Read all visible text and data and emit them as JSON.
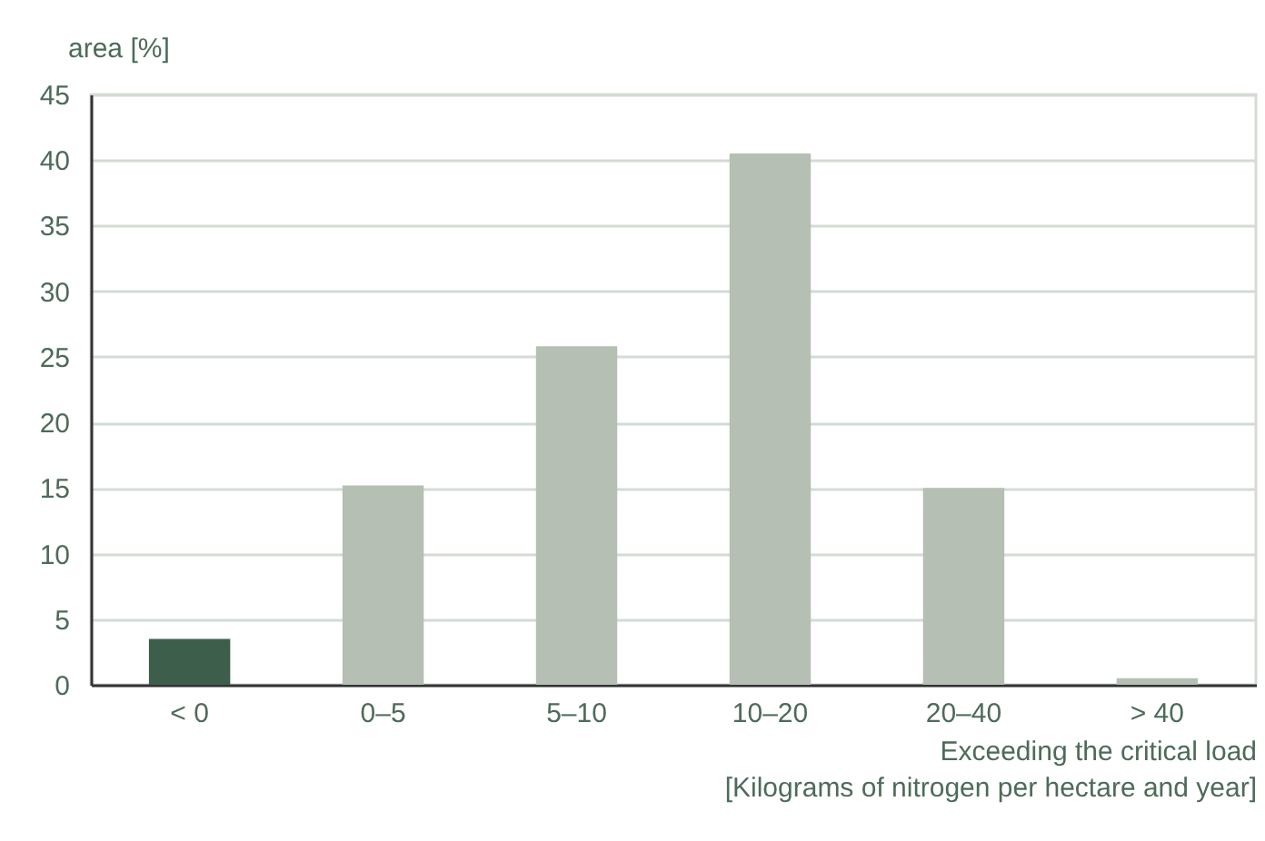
{
  "chart_data": {
    "type": "bar",
    "xlabel": "Exceeding the critical load\n[Kilograms of nitrogen per hectare and year]",
    "ylabel": "area [%]",
    "categories": [
      "< 0",
      "0–5",
      "5–10",
      "10–20",
      "20–40",
      "> 40"
    ],
    "values": [
      3.5,
      15.2,
      25.8,
      40.5,
      15,
      0.5
    ],
    "colors": [
      "#3d5e4a",
      "#b5bfb3",
      "#b5bfb3",
      "#b5bfb3",
      "#b5bfb3",
      "#b5bfb3"
    ],
    "ylim": [
      0,
      45
    ],
    "yticks": [
      0,
      5,
      10,
      15,
      20,
      25,
      30,
      35,
      40,
      45
    ],
    "grid": "y"
  }
}
